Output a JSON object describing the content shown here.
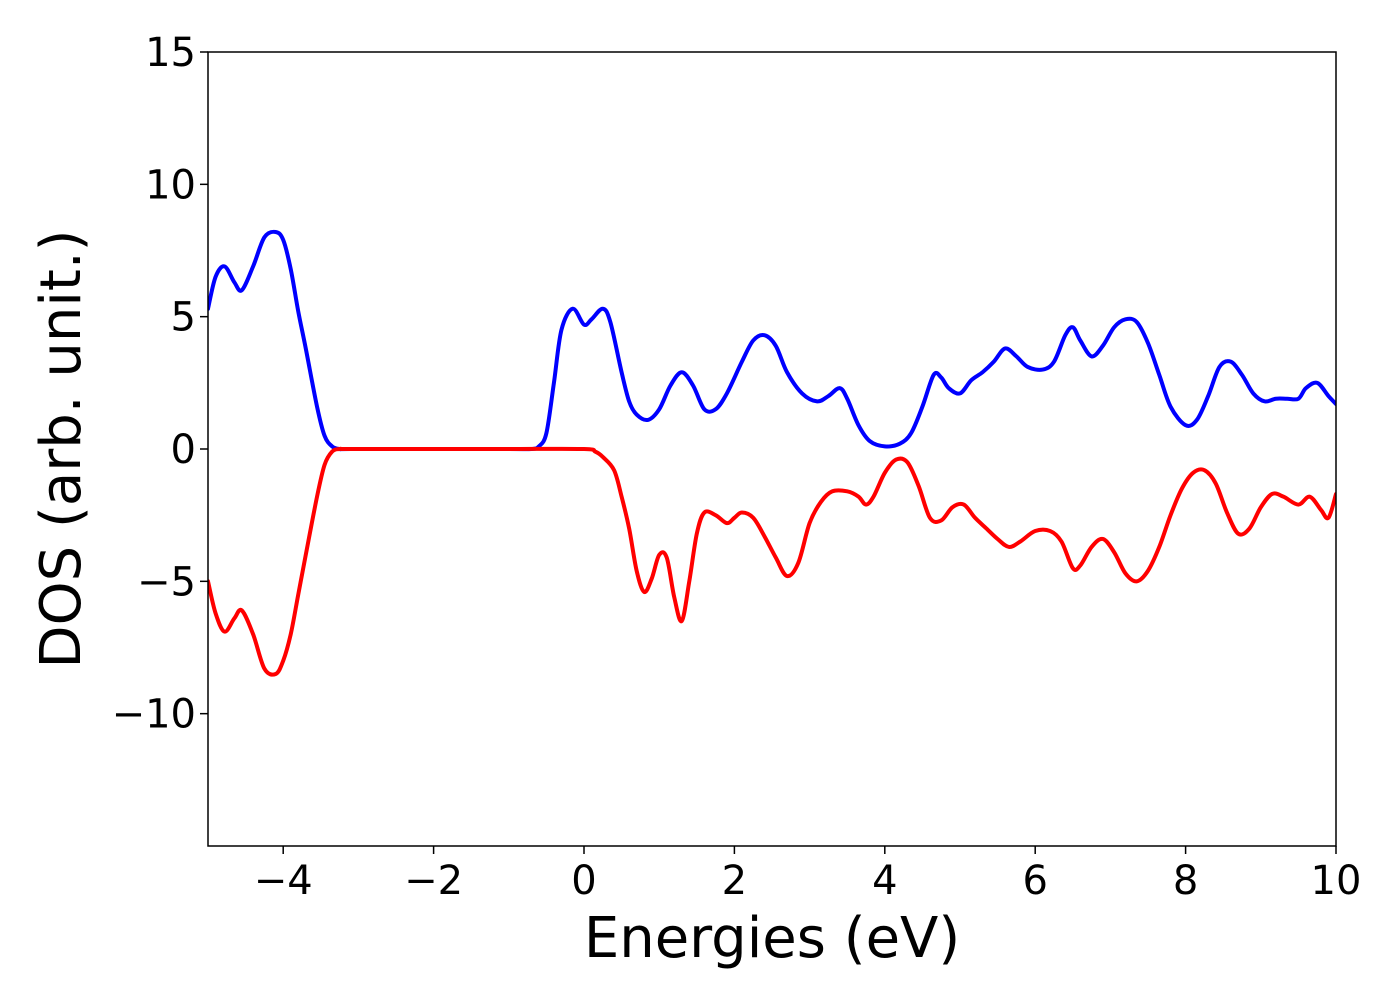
{
  "chart_data": {
    "type": "line",
    "title": "",
    "xlabel": "Energies (eV)",
    "ylabel": "DOS (arb. unit.)",
    "xlim": [
      -5,
      10
    ],
    "ylim": [
      -15,
      15
    ],
    "x_ticks": [
      -4,
      -2,
      0,
      2,
      4,
      6,
      8,
      10
    ],
    "y_ticks": [
      -10,
      -5,
      0,
      5,
      10,
      15
    ],
    "x_tick_labels": [
      "−4",
      "−2",
      "0",
      "2",
      "4",
      "6",
      "8",
      "10"
    ],
    "y_tick_labels": [
      "−10",
      "−5",
      "0",
      "5",
      "10",
      "15"
    ],
    "grid": false,
    "legend": "none",
    "series": [
      {
        "color": "#0000ff",
        "x": [
          -5.0,
          -4.9,
          -4.78,
          -4.65,
          -4.55,
          -4.4,
          -4.25,
          -4.1,
          -4.0,
          -3.9,
          -3.8,
          -3.7,
          -3.55,
          -3.45,
          -3.35,
          -3.25,
          -3.1,
          -2.0,
          -1.0,
          -0.7,
          -0.6,
          -0.5,
          -0.4,
          -0.3,
          -0.15,
          0.0,
          0.1,
          0.25,
          0.35,
          0.5,
          0.6,
          0.7,
          0.85,
          1.0,
          1.15,
          1.3,
          1.45,
          1.6,
          1.75,
          1.9,
          2.1,
          2.25,
          2.4,
          2.55,
          2.7,
          2.9,
          3.1,
          3.25,
          3.4,
          3.5,
          3.65,
          3.8,
          4.0,
          4.2,
          4.35,
          4.5,
          4.65,
          4.75,
          4.85,
          5.0,
          5.15,
          5.3,
          5.45,
          5.6,
          5.75,
          5.9,
          6.1,
          6.25,
          6.4,
          6.5,
          6.6,
          6.75,
          6.9,
          7.05,
          7.2,
          7.35,
          7.5,
          7.65,
          7.8,
          8.0,
          8.15,
          8.3,
          8.45,
          8.6,
          8.75,
          8.9,
          9.05,
          9.2,
          9.35,
          9.5,
          9.6,
          9.75,
          9.9,
          10.0
        ],
        "y": [
          5.3,
          6.5,
          6.9,
          6.3,
          6.0,
          6.9,
          8.0,
          8.2,
          7.9,
          6.8,
          5.2,
          3.8,
          1.6,
          0.5,
          0.1,
          0.0,
          0.0,
          0.0,
          0.0,
          0.0,
          0.1,
          0.6,
          2.5,
          4.5,
          5.3,
          4.7,
          4.9,
          5.3,
          4.8,
          2.9,
          1.8,
          1.3,
          1.1,
          1.5,
          2.4,
          2.9,
          2.4,
          1.5,
          1.5,
          2.1,
          3.3,
          4.1,
          4.3,
          3.9,
          2.9,
          2.1,
          1.8,
          2.0,
          2.3,
          1.9,
          0.9,
          0.3,
          0.1,
          0.2,
          0.6,
          1.6,
          2.8,
          2.7,
          2.3,
          2.1,
          2.6,
          2.9,
          3.3,
          3.8,
          3.5,
          3.1,
          3.0,
          3.3,
          4.3,
          4.6,
          4.1,
          3.5,
          3.9,
          4.6,
          4.9,
          4.8,
          4.0,
          2.8,
          1.6,
          0.9,
          1.1,
          2.0,
          3.1,
          3.3,
          2.8,
          2.1,
          1.8,
          1.9,
          1.9,
          1.9,
          2.3,
          2.5,
          2.0,
          1.7
        ]
      },
      {
        "color": "#ff0000",
        "x": [
          -5.0,
          -4.9,
          -4.78,
          -4.65,
          -4.55,
          -4.4,
          -4.25,
          -4.1,
          -4.0,
          -3.9,
          -3.8,
          -3.7,
          -3.55,
          -3.45,
          -3.35,
          -3.25,
          -3.1,
          -2.0,
          -1.0,
          0.0,
          0.15,
          0.25,
          0.4,
          0.5,
          0.6,
          0.7,
          0.8,
          0.9,
          1.0,
          1.1,
          1.2,
          1.3,
          1.4,
          1.5,
          1.6,
          1.75,
          1.9,
          2.0,
          2.1,
          2.25,
          2.4,
          2.55,
          2.7,
          2.85,
          3.0,
          3.15,
          3.3,
          3.5,
          3.65,
          3.75,
          3.85,
          4.0,
          4.15,
          4.3,
          4.45,
          4.6,
          4.75,
          4.9,
          5.05,
          5.2,
          5.35,
          5.5,
          5.65,
          5.8,
          6.0,
          6.2,
          6.35,
          6.5,
          6.6,
          6.75,
          6.9,
          7.05,
          7.2,
          7.35,
          7.5,
          7.65,
          7.8,
          7.95,
          8.1,
          8.25,
          8.4,
          8.55,
          8.7,
          8.85,
          9.0,
          9.15,
          9.3,
          9.5,
          9.65,
          9.8,
          9.9,
          10.0
        ],
        "y": [
          -5.0,
          -6.2,
          -6.9,
          -6.4,
          -6.1,
          -7.0,
          -8.3,
          -8.5,
          -8.0,
          -7.0,
          -5.5,
          -4.0,
          -1.8,
          -0.6,
          -0.1,
          0.0,
          0.0,
          0.0,
          0.0,
          0.0,
          -0.1,
          -0.3,
          -0.8,
          -1.8,
          -3.0,
          -4.6,
          -5.4,
          -4.9,
          -4.0,
          -4.1,
          -5.6,
          -6.5,
          -5.0,
          -3.2,
          -2.4,
          -2.5,
          -2.8,
          -2.6,
          -2.4,
          -2.6,
          -3.3,
          -4.1,
          -4.8,
          -4.3,
          -2.8,
          -2.0,
          -1.6,
          -1.6,
          -1.8,
          -2.1,
          -1.8,
          -0.9,
          -0.4,
          -0.5,
          -1.4,
          -2.6,
          -2.7,
          -2.2,
          -2.1,
          -2.6,
          -3.0,
          -3.4,
          -3.7,
          -3.5,
          -3.1,
          -3.1,
          -3.5,
          -4.5,
          -4.4,
          -3.7,
          -3.4,
          -3.9,
          -4.7,
          -5.0,
          -4.6,
          -3.7,
          -2.5,
          -1.5,
          -0.9,
          -0.8,
          -1.3,
          -2.4,
          -3.2,
          -3.0,
          -2.2,
          -1.7,
          -1.8,
          -2.1,
          -1.8,
          -2.3,
          -2.6,
          -1.7
        ]
      }
    ]
  }
}
